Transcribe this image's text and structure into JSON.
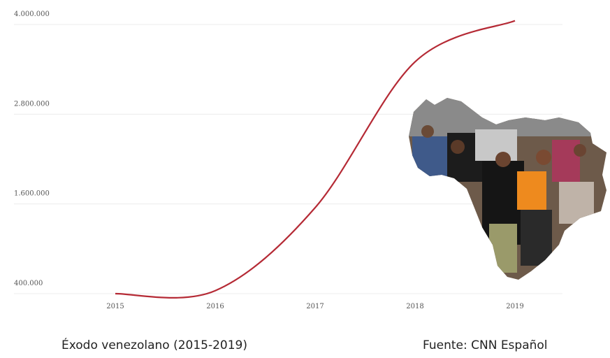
{
  "chart_data": {
    "type": "line",
    "x": [
      "2015",
      "2016",
      "2017",
      "2018",
      "2019"
    ],
    "series": [
      {
        "values": [
          400000,
          440000,
          1550000,
          3500000,
          4050000
        ],
        "color": "#b52a35"
      }
    ],
    "yticks": [
      "400.000",
      "1.600.000",
      "2.800.000",
      "4.000.000"
    ],
    "ytick_values": [
      400000,
      1600000,
      2800000,
      4000000
    ],
    "ylim": [
      400000,
      4000000
    ],
    "grid": true,
    "inset_image": "venezuela-map-migrants-photo"
  },
  "footer": {
    "caption": "Éxodo venezolano (2015-2019)",
    "source": "Fuente: CNN Español"
  }
}
